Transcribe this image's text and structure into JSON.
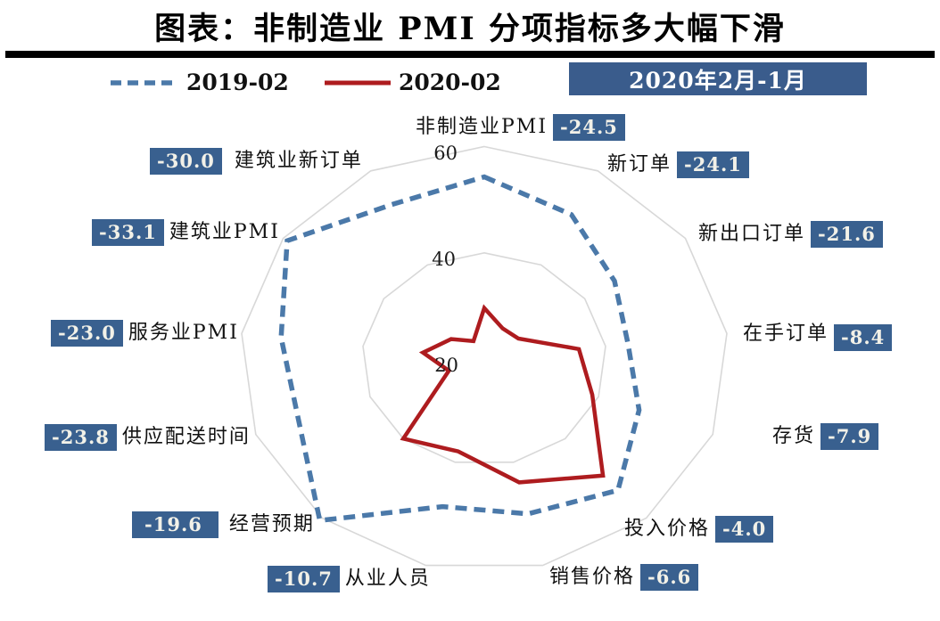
{
  "page": {
    "title": "图表：非制造业 PMI 分项指标多大幅下滑"
  },
  "legend": {
    "period_box": {
      "label": "2020年2月-1月",
      "bg": "#3A5C8C",
      "text_color": "#FFFFFF"
    }
  },
  "chart_data": {
    "type": "radar",
    "title": "图表：非制造业 PMI 分项指标多大幅下滑",
    "axis": {
      "min": 20,
      "max": 60,
      "tick_labels": [
        "20",
        "40",
        "60"
      ],
      "rings_drawn": [
        40,
        60
      ],
      "grid": true
    },
    "grid_color": "#D8D8D8",
    "badge_bg": "#39608F",
    "categories": [
      "非制造业PMI",
      "新订单",
      "新出口订单",
      "在手订单",
      "存货",
      "投入价格",
      "销售价格",
      "从业人员",
      "经营预期",
      "供应配送时间",
      "服务业PMI",
      "建筑业PMI",
      "建筑业新订单"
    ],
    "change_labels": [
      "-24.5",
      "-24.1",
      "-21.6",
      "-8.4",
      "-7.9",
      "-4.0",
      "-6.6",
      "-10.7",
      "-19.6",
      "-23.8",
      "-23.0",
      "-33.1",
      "-30.0"
    ],
    "series": [
      {
        "name": "2019-02",
        "color": "#4B79A9",
        "dashed": true,
        "values": [
          54.3,
          50.7,
          45.9,
          43.7,
          47.1,
          53.0,
          50.0,
          48.6,
          60.6,
          52.5,
          53.5,
          59.2,
          52.8
        ]
      },
      {
        "name": "2020-02",
        "color": "#AE1C1F",
        "dashed": false,
        "values": [
          29.6,
          26.5,
          26.8,
          35.6,
          38.9,
          49.3,
          43.9,
          37.9,
          40.0,
          26.2,
          30.1,
          26.6,
          23.8
        ]
      }
    ],
    "legend_position": "top"
  }
}
